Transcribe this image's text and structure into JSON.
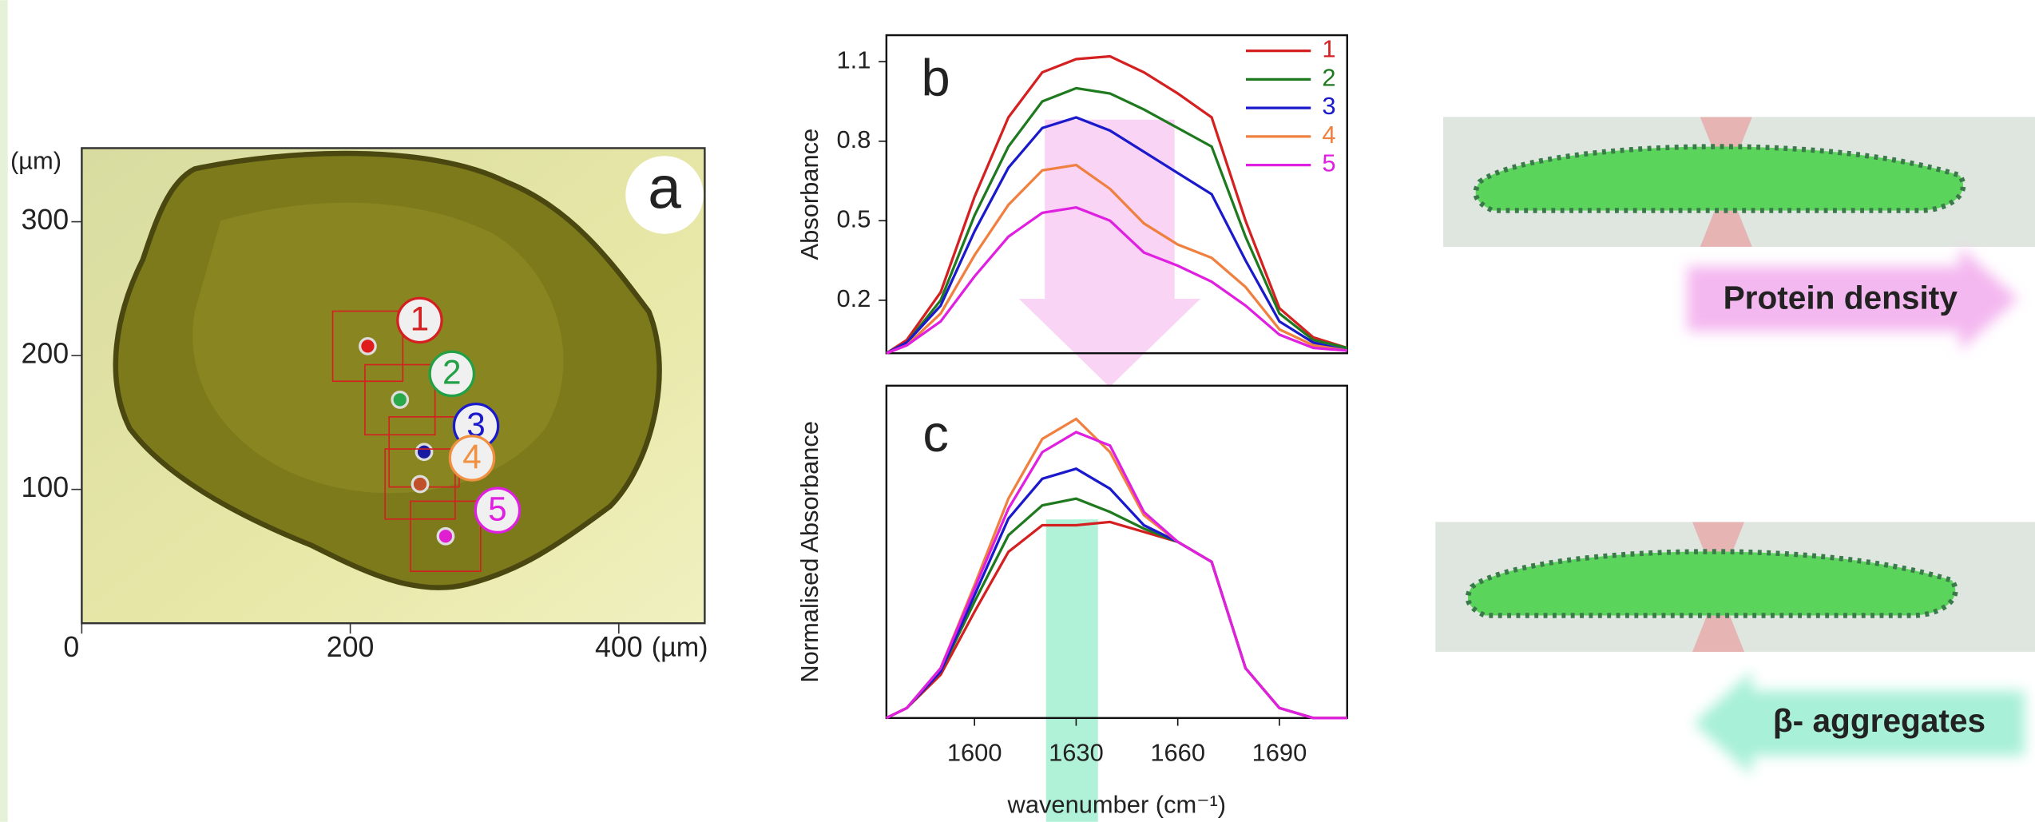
{
  "chart_data": [
    {
      "type": "scatter",
      "panel_label": "a",
      "x_label": "(µm)",
      "y_label": "(µm)",
      "x": [
        213,
        237,
        255,
        252,
        271
      ],
      "y": [
        207,
        167,
        128,
        104,
        65
      ],
      "point_labels": [
        "1",
        "2",
        "3",
        "4",
        "5"
      ],
      "colors": [
        "#e01b1b",
        "#2aa84a",
        "#1a1aa0",
        "#c0502a",
        "#e020d0"
      ],
      "label_colors": [
        "#d42020",
        "#22a045",
        "#1a1acc",
        "#f09040",
        "#e020e0"
      ],
      "xlim": [
        0,
        464
      ],
      "ylim": [
        0,
        355
      ],
      "xticks": [
        0,
        200,
        400
      ],
      "yticks": [
        100,
        200,
        300
      ]
    },
    {
      "type": "line",
      "panel_label": "b",
      "y_label": "Absorbance",
      "legend": "upper right",
      "x": [
        1574,
        1580,
        1590,
        1600,
        1610,
        1620,
        1630,
        1640,
        1650,
        1660,
        1670,
        1680,
        1690,
        1700,
        1710
      ],
      "series": [
        {
          "name": "1",
          "color": "#d42020",
          "values": [
            0,
            0.05,
            0.23,
            0.59,
            0.89,
            1.06,
            1.11,
            1.12,
            1.06,
            0.98,
            0.89,
            0.5,
            0.17,
            0.06,
            0.02
          ]
        },
        {
          "name": "2",
          "color": "#1f7a1f",
          "values": [
            0,
            0.04,
            0.2,
            0.52,
            0.78,
            0.95,
            1.0,
            0.98,
            0.92,
            0.85,
            0.78,
            0.44,
            0.15,
            0.05,
            0.02
          ]
        },
        {
          "name": "3",
          "color": "#1a1acc",
          "values": [
            0,
            0.04,
            0.18,
            0.46,
            0.7,
            0.85,
            0.89,
            0.84,
            0.76,
            0.68,
            0.6,
            0.35,
            0.12,
            0.04,
            0.01
          ]
        },
        {
          "name": "4",
          "color": "#f08040",
          "values": [
            0,
            0.03,
            0.15,
            0.37,
            0.56,
            0.69,
            0.71,
            0.62,
            0.49,
            0.41,
            0.36,
            0.25,
            0.09,
            0.03,
            0.01
          ]
        },
        {
          "name": "5",
          "color": "#e020e0",
          "values": [
            0,
            0.03,
            0.12,
            0.29,
            0.44,
            0.53,
            0.55,
            0.5,
            0.38,
            0.33,
            0.27,
            0.18,
            0.07,
            0.02,
            0.01
          ]
        }
      ],
      "xlim": [
        1574,
        1710
      ],
      "ylim": [
        0,
        1.2
      ],
      "yticks": [
        0.2,
        0.5,
        0.8,
        1.1
      ]
    },
    {
      "type": "line",
      "panel_label": "c",
      "y_label": "Normalised Absorbance",
      "x_label": "wavenumber (cm⁻¹)",
      "x": [
        1574,
        1580,
        1590,
        1600,
        1610,
        1620,
        1630,
        1640,
        1650,
        1660,
        1670,
        1680,
        1690,
        1700,
        1710
      ],
      "series": [
        {
          "name": "1",
          "color": "#d42020",
          "values": [
            0,
            0.03,
            0.13,
            0.32,
            0.5,
            0.58,
            0.58,
            0.59,
            0.56,
            0.53,
            0.47,
            0.15,
            0.03,
            0,
            0
          ]
        },
        {
          "name": "2",
          "color": "#1f7a1f",
          "values": [
            0,
            0.03,
            0.14,
            0.35,
            0.55,
            0.64,
            0.66,
            0.62,
            0.57,
            0.53,
            0.47,
            0.15,
            0.03,
            0,
            0
          ]
        },
        {
          "name": "3",
          "color": "#1a1acc",
          "values": [
            0,
            0.03,
            0.14,
            0.37,
            0.6,
            0.72,
            0.75,
            0.69,
            0.58,
            0.53,
            0.47,
            0.15,
            0.03,
            0,
            0
          ]
        },
        {
          "name": "4",
          "color": "#f08040",
          "values": [
            0,
            0.03,
            0.15,
            0.4,
            0.66,
            0.84,
            0.9,
            0.8,
            0.61,
            0.53,
            0.47,
            0.15,
            0.03,
            0,
            0
          ]
        },
        {
          "name": "5",
          "color": "#e020e0",
          "values": [
            0,
            0.03,
            0.15,
            0.39,
            0.63,
            0.8,
            0.86,
            0.82,
            0.62,
            0.53,
            0.47,
            0.15,
            0.03,
            0,
            0
          ]
        }
      ],
      "xlim": [
        1574,
        1710
      ],
      "ylim": [
        0,
        1
      ],
      "xticks": [
        1600,
        1630,
        1660,
        1690
      ]
    }
  ],
  "annotations": [
    {
      "label": "Protein density"
    },
    {
      "label": "β- aggregates"
    }
  ]
}
